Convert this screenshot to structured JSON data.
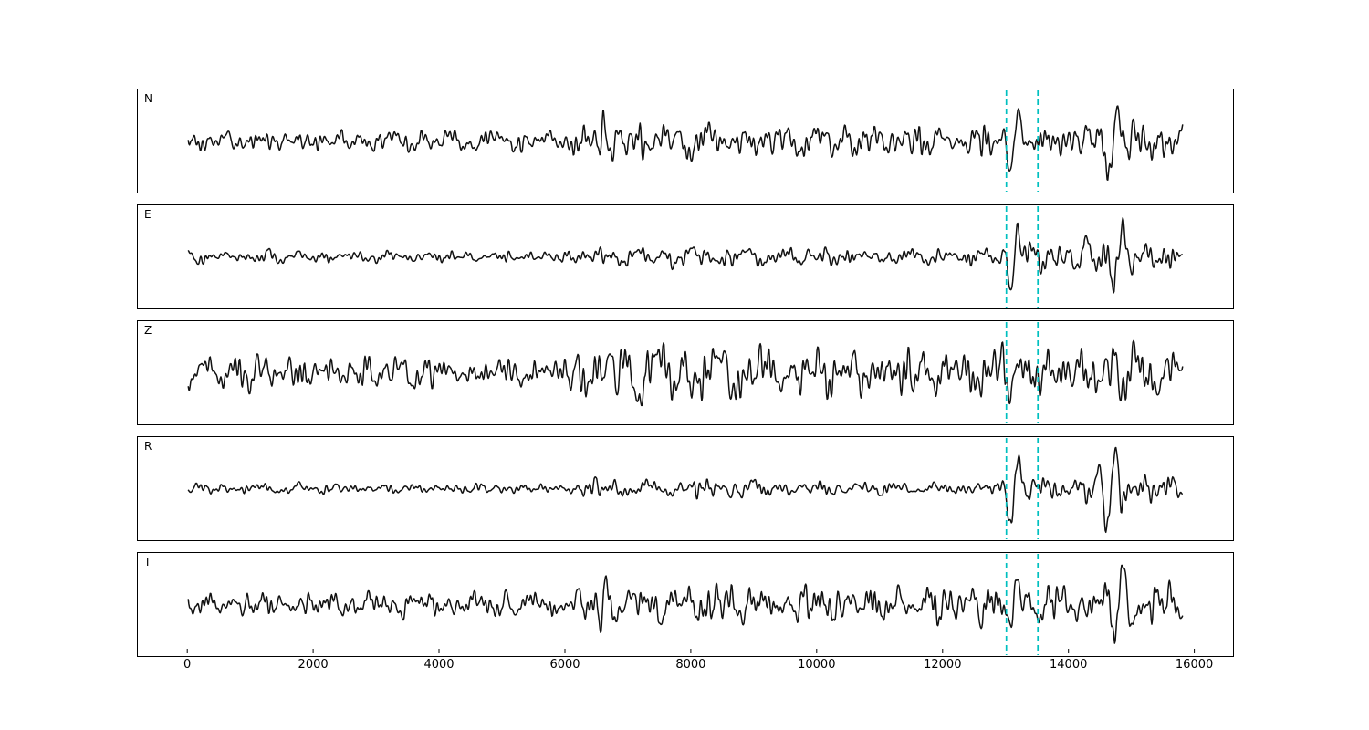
{
  "chart_data": {
    "type": "line",
    "title": "",
    "xlabel": "",
    "ylabel": "",
    "grid": false,
    "legend": "none",
    "trace_color": "#111111",
    "background": "#ffffff",
    "xlim": [
      -800,
      16600
    ],
    "x_range": [
      0,
      15800
    ],
    "sample_step": 10,
    "xticks": [
      0,
      2000,
      4000,
      6000,
      8000,
      10000,
      12000,
      14000,
      16000
    ],
    "pick_lines": {
      "x": [
        13000,
        13500
      ],
      "color": "#00bfbf",
      "style": "dashed"
    },
    "channels": [
      {
        "label": "N",
        "seed": 11,
        "amp": 48,
        "envelope": [
          [
            0,
            0.26
          ],
          [
            2000,
            0.28
          ],
          [
            5800,
            0.28
          ],
          [
            6300,
            0.5
          ],
          [
            6700,
            0.55
          ],
          [
            7600,
            0.45
          ],
          [
            8200,
            0.55
          ],
          [
            8600,
            0.4
          ],
          [
            9500,
            0.42
          ],
          [
            11000,
            0.45
          ],
          [
            12500,
            0.45
          ],
          [
            12950,
            0.4
          ],
          [
            13080,
            0.45
          ],
          [
            13300,
            0.45
          ],
          [
            13800,
            0.4
          ],
          [
            14300,
            0.55
          ],
          [
            14650,
            0.55
          ],
          [
            15000,
            0.6
          ],
          [
            15400,
            0.5
          ],
          [
            15800,
            0.45
          ]
        ],
        "wavelets": [
          {
            "t": 6560,
            "sigma": 60,
            "period": 180,
            "amp": 0.5
          },
          {
            "t": 13120,
            "sigma": 130,
            "period": 280,
            "amp": 0.95
          },
          {
            "t": 14680,
            "sigma": 260,
            "period": 330,
            "amp": 0.8
          }
        ]
      },
      {
        "label": "E",
        "seed": 22,
        "amp": 49,
        "envelope": [
          [
            0,
            0.18
          ],
          [
            3000,
            0.16
          ],
          [
            5900,
            0.15
          ],
          [
            6400,
            0.32
          ],
          [
            7000,
            0.22
          ],
          [
            7800,
            0.3
          ],
          [
            8800,
            0.24
          ],
          [
            10000,
            0.26
          ],
          [
            11000,
            0.2
          ],
          [
            12000,
            0.22
          ],
          [
            12900,
            0.28
          ],
          [
            13080,
            0.4
          ],
          [
            13300,
            0.4
          ],
          [
            13900,
            0.42
          ],
          [
            14400,
            0.5
          ],
          [
            14800,
            0.55
          ],
          [
            15200,
            0.5
          ],
          [
            15800,
            0.35
          ]
        ],
        "wavelets": [
          {
            "t": 13120,
            "sigma": 120,
            "period": 270,
            "amp": 1.0
          },
          {
            "t": 14780,
            "sigma": 220,
            "period": 300,
            "amp": 0.7
          }
        ]
      },
      {
        "label": "Z",
        "seed": 33,
        "amp": 42,
        "envelope": [
          [
            0,
            0.55
          ],
          [
            1500,
            0.6
          ],
          [
            3500,
            0.5
          ],
          [
            5000,
            0.45
          ],
          [
            6100,
            0.6
          ],
          [
            6600,
            1.0
          ],
          [
            7000,
            0.85
          ],
          [
            7800,
            0.95
          ],
          [
            8600,
            0.85
          ],
          [
            9500,
            0.8
          ],
          [
            10500,
            0.75
          ],
          [
            11500,
            0.8
          ],
          [
            12500,
            0.8
          ],
          [
            13150,
            0.95
          ],
          [
            13600,
            0.75
          ],
          [
            14200,
            0.8
          ],
          [
            14800,
            0.9
          ],
          [
            15400,
            0.85
          ],
          [
            15800,
            0.8
          ]
        ],
        "wavelets": []
      },
      {
        "label": "R",
        "seed": 44,
        "amp": 49,
        "envelope": [
          [
            0,
            0.15
          ],
          [
            3000,
            0.13
          ],
          [
            6000,
            0.14
          ],
          [
            6500,
            0.28
          ],
          [
            7400,
            0.22
          ],
          [
            8300,
            0.28
          ],
          [
            9500,
            0.2
          ],
          [
            11000,
            0.17
          ],
          [
            12400,
            0.15
          ],
          [
            12900,
            0.22
          ],
          [
            13080,
            0.38
          ],
          [
            13350,
            0.38
          ],
          [
            14000,
            0.32
          ],
          [
            14600,
            0.45
          ],
          [
            15000,
            0.55
          ],
          [
            15500,
            0.42
          ],
          [
            15800,
            0.32
          ]
        ],
        "wavelets": [
          {
            "t": 13130,
            "sigma": 140,
            "period": 300,
            "amp": 1.05
          },
          {
            "t": 14650,
            "sigma": 160,
            "period": 280,
            "amp": 0.8
          }
        ]
      },
      {
        "label": "T",
        "seed": 55,
        "amp": 48,
        "envelope": [
          [
            0,
            0.3
          ],
          [
            2000,
            0.35
          ],
          [
            4500,
            0.35
          ],
          [
            6100,
            0.35
          ],
          [
            6550,
            0.5
          ],
          [
            6750,
            0.45
          ],
          [
            7400,
            0.5
          ],
          [
            8300,
            0.6
          ],
          [
            9200,
            0.5
          ],
          [
            10200,
            0.55
          ],
          [
            11200,
            0.5
          ],
          [
            12300,
            0.55
          ],
          [
            13100,
            0.55
          ],
          [
            13450,
            0.5
          ],
          [
            14200,
            0.5
          ],
          [
            14700,
            0.55
          ],
          [
            15100,
            0.6
          ],
          [
            15500,
            0.55
          ],
          [
            15800,
            0.45
          ]
        ],
        "wavelets": [
          {
            "t": 6600,
            "sigma": 80,
            "period": 200,
            "amp": 0.7
          },
          {
            "t": 13120,
            "sigma": 110,
            "period": 250,
            "amp": 0.8
          },
          {
            "t": 14780,
            "sigma": 220,
            "period": 280,
            "amp": 0.85
          }
        ]
      }
    ]
  }
}
